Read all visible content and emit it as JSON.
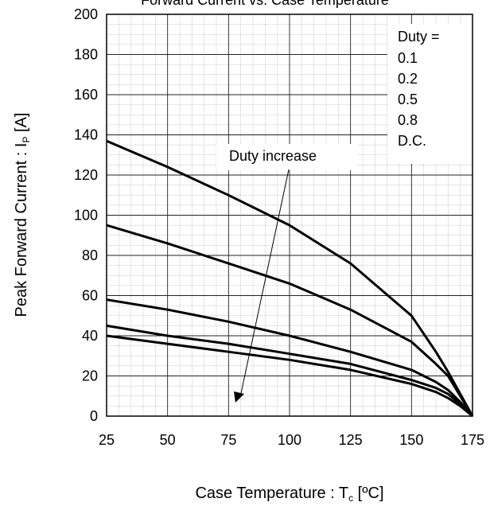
{
  "chart_data": {
    "type": "line",
    "title_fragment": "Forward Current vs. Case Temperature",
    "xlabel": "Case Temperature : T",
    "xlabel_sub": "c",
    "xlabel_unit": " [ºC]",
    "ylabel": "Peak Forward Current : I",
    "ylabel_sub": "P",
    "ylabel_unit": " [A]",
    "xlim": [
      25,
      175
    ],
    "ylim": [
      0,
      200
    ],
    "x_ticks": [
      25,
      50,
      75,
      100,
      125,
      150,
      175
    ],
    "y_ticks": [
      0,
      20,
      40,
      60,
      80,
      100,
      120,
      140,
      160,
      180,
      200
    ],
    "grid": true,
    "legend_position": "top-right",
    "legend_title": "Duty =",
    "series": [
      {
        "name": "0.1",
        "x": [
          25,
          50,
          75,
          100,
          125,
          150,
          160,
          165,
          170,
          175
        ],
        "y": [
          137,
          124,
          110,
          95,
          76,
          50,
          32,
          22,
          11,
          0
        ]
      },
      {
        "name": "0.2",
        "x": [
          25,
          50,
          75,
          100,
          125,
          150,
          160,
          165,
          170,
          175
        ],
        "y": [
          95,
          86,
          76,
          66,
          53,
          37,
          26,
          20,
          10,
          0
        ]
      },
      {
        "name": "0.5",
        "x": [
          25,
          50,
          75,
          100,
          125,
          150,
          160,
          165,
          170,
          175
        ],
        "y": [
          58,
          53,
          47,
          40,
          32,
          23,
          17,
          13,
          7,
          0
        ]
      },
      {
        "name": "0.8",
        "x": [
          25,
          50,
          75,
          100,
          125,
          150,
          160,
          165,
          170,
          175
        ],
        "y": [
          45,
          40,
          36,
          31,
          26,
          18,
          14,
          11,
          6,
          0
        ]
      },
      {
        "name": "D.C.",
        "x": [
          25,
          50,
          75,
          100,
          125,
          150,
          160,
          165,
          170,
          175
        ],
        "y": [
          40,
          36,
          32,
          28,
          23,
          16,
          12,
          9,
          5,
          0
        ]
      }
    ],
    "annotation": "Duty increase"
  }
}
